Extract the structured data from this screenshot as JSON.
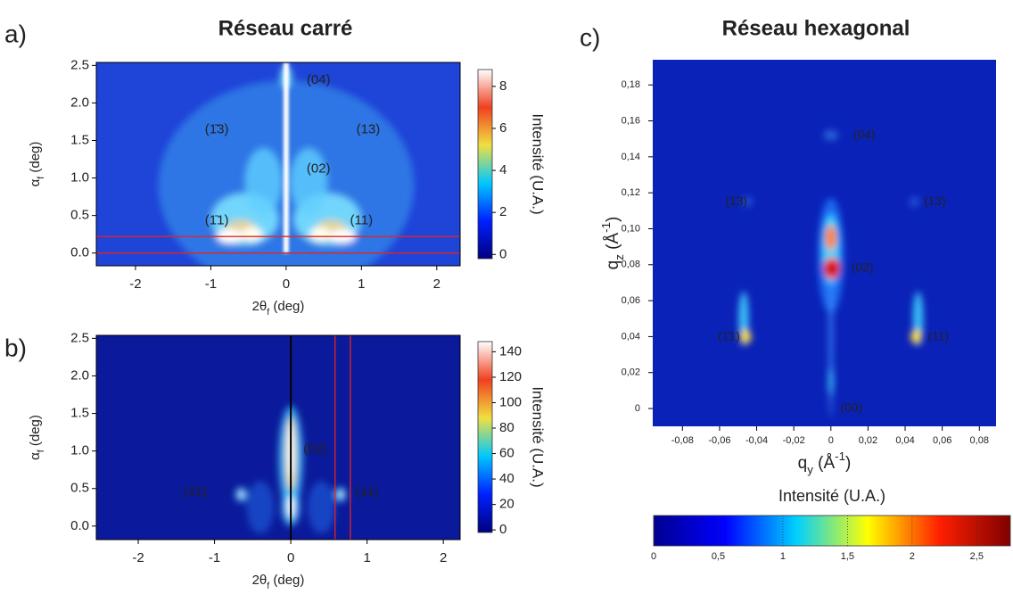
{
  "chart_data": [
    {
      "type": "heatmap",
      "panel": "a)",
      "title": "Réseau carré",
      "xlabel": [
        {
          "text": "2θ"
        },
        {
          "text": "f",
          "sub": true
        },
        {
          "text": " (deg)"
        }
      ],
      "ylabel": [
        {
          "text": "α"
        },
        {
          "text": "f",
          "sub": true
        },
        {
          "text": " (deg)"
        }
      ],
      "xlim": [
        -2.52,
        2.31
      ],
      "xticks": [
        -2,
        -1,
        0,
        1,
        2
      ],
      "ylim": [
        -0.17,
        2.54
      ],
      "yticks": [
        {
          "value": 0,
          "label": "0.0"
        },
        0.5,
        {
          "value": 1,
          "label": "1.0"
        },
        1.5,
        {
          "value": 2,
          "label": "2.0"
        },
        2.5
      ],
      "annotations": [
        "(04)",
        "(1̄3)",
        "(13)",
        "(02)",
        "(1̄1)",
        "(11)"
      ],
      "hlines": [
        0.22,
        0
      ],
      "line_color": "#e8231d",
      "colorbar": {
        "label": "Intensité (U.A.)",
        "orientation": "vertical",
        "lim": [
          -0.2,
          8.8
        ],
        "ticks": [
          0,
          2,
          4,
          6,
          8
        ],
        "colormap": [
          "#000080",
          "#0020ff",
          "#00c8ff",
          "#f0e040",
          "#f04020",
          "#ffffff"
        ]
      }
    },
    {
      "type": "heatmap",
      "panel": "b)",
      "xlabel": [
        {
          "text": "2θ"
        },
        {
          "text": "f",
          "sub": true
        },
        {
          "text": " (deg)"
        }
      ],
      "ylabel": [
        {
          "text": "α"
        },
        {
          "text": "f",
          "sub": true
        },
        {
          "text": " (deg)"
        }
      ],
      "xlim": [
        -2.55,
        2.22
      ],
      "xticks": [
        -2,
        -1,
        0,
        1,
        2
      ],
      "ylim": [
        -0.18,
        2.54
      ],
      "yticks": [
        {
          "value": 0,
          "label": "0.0"
        },
        0.5,
        {
          "value": 1,
          "label": "1.0"
        },
        1.5,
        {
          "value": 2,
          "label": "2.0"
        },
        2.5
      ],
      "annotations": [
        "(02)",
        "(1̄1)",
        "(11)"
      ],
      "vlines": [
        0.58,
        0.78
      ],
      "line_color": "#e8231d",
      "colorbar": {
        "label": "Intensité (U.A.)",
        "orientation": "vertical",
        "lim": [
          -2,
          148
        ],
        "ticks": [
          0,
          20,
          40,
          60,
          80,
          100,
          120,
          140
        ],
        "colormap": [
          "#000080",
          "#0020ff",
          "#00c8ff",
          "#f0e040",
          "#f04020",
          "#ffffff"
        ]
      }
    },
    {
      "type": "heatmap",
      "panel": "c)",
      "title": "Réseau hexagonal",
      "xlabel": [
        {
          "text": "q"
        },
        {
          "text": "y",
          "sub": true
        },
        {
          "text": " (Å"
        },
        {
          "text": "-1",
          "sup": true
        },
        {
          "text": ")"
        }
      ],
      "ylabel": [
        {
          "text": "q"
        },
        {
          "text": "z",
          "sub": true
        },
        {
          "text": " (Å"
        },
        {
          "text": "-1",
          "sup": true
        },
        {
          "text": ")"
        }
      ],
      "xlim": [
        -0.096,
        0.089
      ],
      "xticks": [
        {
          "value": -0.08,
          "label": "-0,08"
        },
        {
          "value": -0.06,
          "label": "-0,06"
        },
        {
          "value": -0.04,
          "label": "-0,04"
        },
        {
          "value": -0.02,
          "label": "-0,02"
        },
        0,
        {
          "value": 0.02,
          "label": "0,02"
        },
        {
          "value": 0.04,
          "label": "0,04"
        },
        {
          "value": 0.06,
          "label": "0,06"
        },
        {
          "value": 0.08,
          "label": "0,08"
        }
      ],
      "ylim": [
        -0.0099,
        0.194
      ],
      "yticks": [
        0,
        {
          "value": 0.02,
          "label": "0,02"
        },
        {
          "value": 0.04,
          "label": "0,04"
        },
        {
          "value": 0.06,
          "label": "0,06"
        },
        {
          "value": 0.08,
          "label": "0,08"
        },
        {
          "value": 0.1,
          "label": "0,10"
        },
        {
          "value": 0.12,
          "label": "0,12"
        },
        {
          "value": 0.14,
          "label": "0,14"
        },
        {
          "value": 0.16,
          "label": "0,16"
        },
        {
          "value": 0.18,
          "label": "0,18"
        }
      ],
      "annotations": [
        "(04)",
        "(1̄3)",
        "(13)",
        "(02)",
        "(1̄1)",
        "(11)",
        "(00)"
      ],
      "colorbar": {
        "label": "Intensité (U.A.)",
        "orientation": "horizontal",
        "lim": [
          0,
          2.76
        ],
        "ticks": [
          0,
          {
            "value": 0.5,
            "label": "0,5"
          },
          1,
          {
            "value": 1.5,
            "label": "1,5"
          },
          2,
          {
            "value": 2.5,
            "label": "2,5"
          }
        ],
        "colormap": [
          "#00008f",
          "#0000ff",
          "#00d0ff",
          "#ffff00",
          "#ff2000",
          "#800000"
        ]
      }
    }
  ]
}
